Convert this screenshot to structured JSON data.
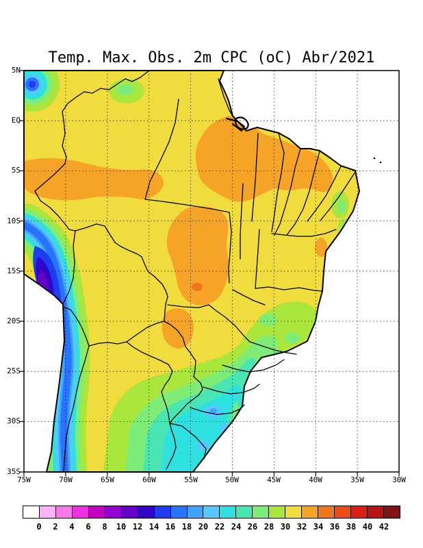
{
  "title": "Temp. Max. Obs. 2m CPC (oC) Abr/2021",
  "map": {
    "y_axis": {
      "labels": [
        "5N",
        "EQ",
        "5S",
        "10S",
        "15S",
        "20S",
        "25S",
        "30S",
        "35S"
      ]
    },
    "x_axis": {
      "labels": [
        "75W",
        "70W",
        "65W",
        "60W",
        "55W",
        "50W",
        "45W",
        "40W",
        "35W",
        "30W"
      ]
    }
  },
  "colorbar": {
    "tick_labels": [
      "0",
      "2",
      "4",
      "6",
      "8",
      "10",
      "12",
      "14",
      "16",
      "18",
      "20",
      "22",
      "24",
      "26",
      "28",
      "30",
      "32",
      "34",
      "36",
      "38",
      "40",
      "42"
    ],
    "colors": [
      "#ffffff",
      "#f9b4f9",
      "#f57ae8",
      "#ee30e0",
      "#c400c4",
      "#9400d3",
      "#6400c8",
      "#3205c8",
      "#1e3cf0",
      "#2873ff",
      "#3ca5ff",
      "#55c8ff",
      "#2ee1e1",
      "#49e6b4",
      "#7ded78",
      "#aae63c",
      "#f0dc3c",
      "#f5a428",
      "#f0761e",
      "#eb4b14",
      "#dc1e14",
      "#b41414",
      "#821414"
    ]
  },
  "palette": {
    "lt0": "#ffffff",
    "t0_2": "#f9b4f9",
    "t2_4": "#f57ae8",
    "t4_6": "#ee30e0",
    "t6_8": "#c400c4",
    "t8_10": "#9400d3",
    "t10_12": "#6400c8",
    "t12_14": "#3205c8",
    "t14_16": "#1e3cf0",
    "t16_18": "#2873ff",
    "t18_20": "#3ca5ff",
    "t20_22": "#55c8ff",
    "t22_24": "#2ee1e1",
    "t24_26": "#49e6b4",
    "t26_28": "#7ded78",
    "t28_30": "#aae63c",
    "t30_32": "#f0dc3c",
    "t32_34": "#f5a428",
    "t34_36": "#f0761e",
    "t36_38": "#eb4b14",
    "t38_40": "#dc1e14",
    "t40_42": "#b41414",
    "gt42": "#821414"
  },
  "chart_data": {
    "type": "heatmap",
    "title": "Temp. Max. Obs. 2m CPC (oC) Abr/2021",
    "variable": "Observed maximum 2m temperature (CPC)",
    "unit": "oC",
    "period": "Abr/2021",
    "projection": "lat-lon map of South America",
    "x_ticks": [
      "75W",
      "70W",
      "65W",
      "60W",
      "55W",
      "50W",
      "45W",
      "40W",
      "35W",
      "30W"
    ],
    "y_ticks": [
      "5N",
      "EQ",
      "5S",
      "10S",
      "15S",
      "20S",
      "25S",
      "30S",
      "35S"
    ],
    "grid_interval_deg": 5,
    "grid_style": "dotted",
    "colorbar": {
      "min": 0,
      "max": 42,
      "step": 2,
      "position": "bottom",
      "colors": [
        "#ffffff",
        "#f9b4f9",
        "#f57ae8",
        "#ee30e0",
        "#c400c4",
        "#9400d3",
        "#6400c8",
        "#3205c8",
        "#1e3cf0",
        "#2873ff",
        "#3ca5ff",
        "#55c8ff",
        "#2ee1e1",
        "#49e6b4",
        "#7ded78",
        "#aae63c",
        "#f0dc3c",
        "#f5a428",
        "#f0761e",
        "#eb4b14",
        "#dc1e14",
        "#b41414",
        "#821414"
      ]
    },
    "regions": [
      {
        "area": "most of central and northern Brazil",
        "tmax_c": "30-32"
      },
      {
        "area": "western Amazon band (4S-8S, 73W-59W)",
        "tmax_c": "32-34"
      },
      {
        "area": "eastern Para / Maranhao / northeast interior (1S-8S, 54W-37W)",
        "tmax_c": "32-34"
      },
      {
        "area": "central Mato Grosso / Goias (9S-18S, 58W-51W)",
        "tmax_c": "32-34"
      },
      {
        "area": "hot core near 16S 55W",
        "tmax_c": "34-36"
      },
      {
        "area": "Paraguay lowlands tongue (19S-23S, 58W-55W)",
        "tmax_c": "32-34"
      },
      {
        "area": "coastal Bahia spot near 13S 39W",
        "tmax_c": "32-34"
      },
      {
        "area": "Minas Gerais / Sao Paulo highlands",
        "tmax_c": "26-30"
      },
      {
        "area": "southern Brazil (PR/SC/RS) and Uruguay border",
        "tmax_c": "20-26"
      },
      {
        "area": "light-blue pockets near 30S 52W",
        "tmax_c": "18-22"
      },
      {
        "area": "Andes cordillera strip (10S-35S along 70-74W)",
        "tmax_c": "8-20"
      },
      {
        "area": "coldest Andes core near 16S 72W",
        "tmax_c": "10-12"
      },
      {
        "area": "northwest corner Andes (5N 75W)",
        "tmax_c": "14-22"
      },
      {
        "area": "Roraima highlands patch near 3N 64W",
        "tmax_c": "26-30"
      },
      {
        "area": "ocean",
        "tmax_c": "no data (white)"
      }
    ]
  }
}
